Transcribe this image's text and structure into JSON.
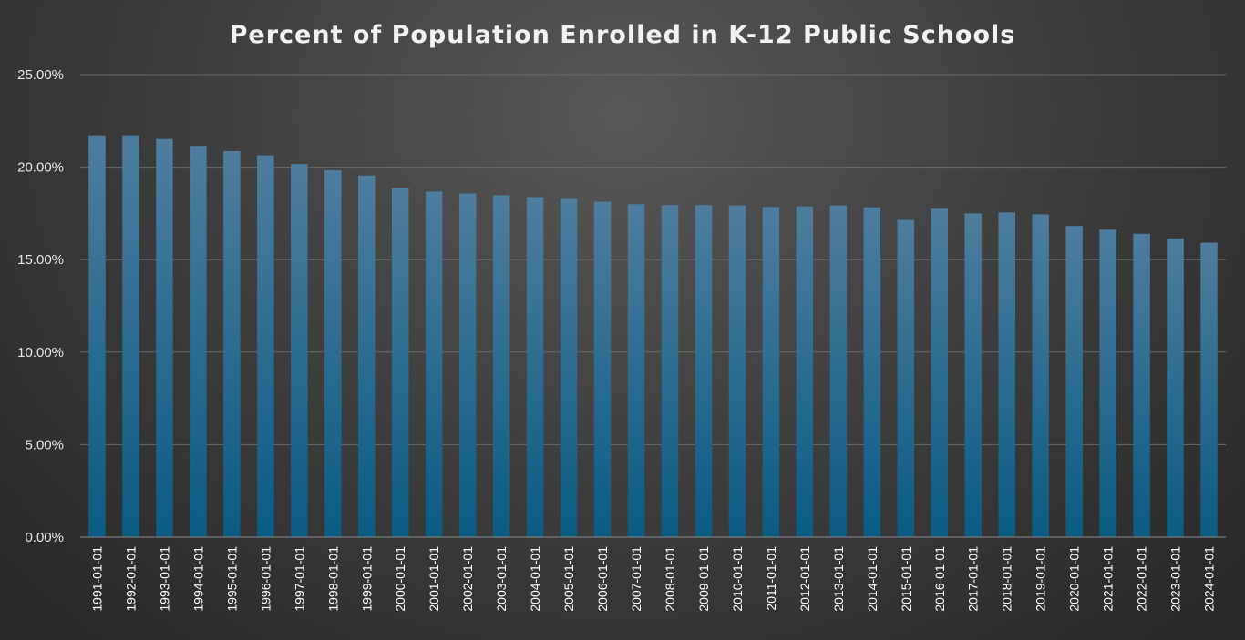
{
  "chart_data": {
    "type": "bar",
    "title": "Percent of Population Enrolled in K-12 Public Schools",
    "xlabel": "",
    "ylabel": "",
    "ylim": [
      0,
      25
    ],
    "yticks": [
      0,
      5,
      10,
      15,
      20,
      25
    ],
    "ytick_labels": [
      "0.00%",
      "5.00%",
      "10.00%",
      "15.00%",
      "20.00%",
      "25.00%"
    ],
    "grid": true,
    "categories": [
      "1991-01-01",
      "1992-01-01",
      "1993-01-01",
      "1994-01-01",
      "1995-01-01",
      "1996-01-01",
      "1997-01-01",
      "1998-01-01",
      "1999-01-01",
      "2000-01-01",
      "2001-01-01",
      "2002-01-01",
      "2003-01-01",
      "2004-01-01",
      "2005-01-01",
      "2006-01-01",
      "2007-01-01",
      "2008-01-01",
      "2009-01-01",
      "2010-01-01",
      "2011-01-01",
      "2012-01-01",
      "2013-01-01",
      "2014-01-01",
      "2015-01-01",
      "2016-01-01",
      "2017-01-01",
      "2018-01-01",
      "2019-01-01",
      "2020-01-01",
      "2021-01-01",
      "2022-01-01",
      "2023-01-01",
      "2024-01-01"
    ],
    "values": [
      21.72,
      21.72,
      21.52,
      21.15,
      20.87,
      20.64,
      20.17,
      19.83,
      19.55,
      18.88,
      18.68,
      18.58,
      18.48,
      18.38,
      18.28,
      18.13,
      18.0,
      17.95,
      17.95,
      17.93,
      17.85,
      17.88,
      17.93,
      17.83,
      17.15,
      17.75,
      17.5,
      17.55,
      17.45,
      16.82,
      16.62,
      16.4,
      16.15,
      15.92
    ],
    "colors": {
      "bar_top": "#4e7d9e",
      "bar_bottom": "#0a5b83"
    }
  }
}
